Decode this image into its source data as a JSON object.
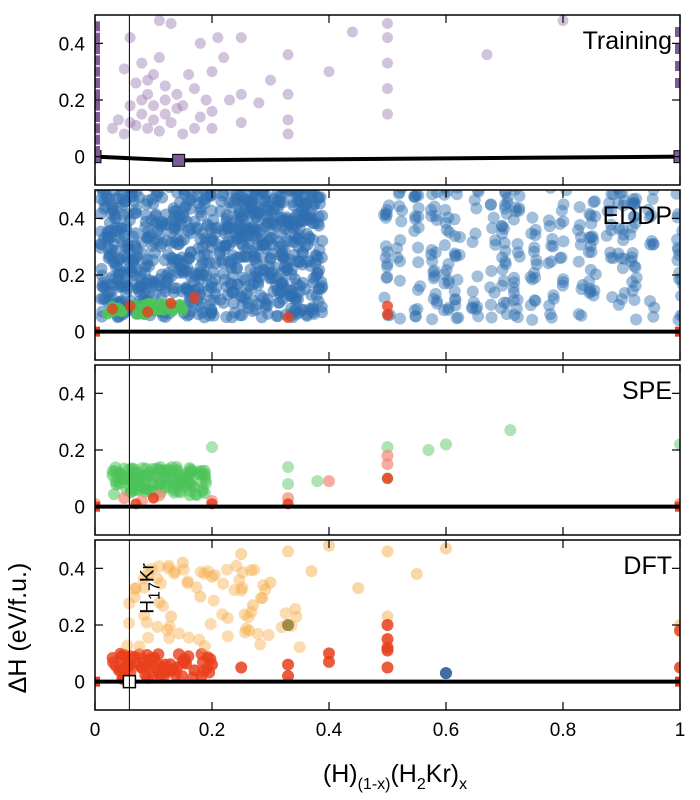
{
  "colors": {
    "training": "#9b7bb3",
    "training_hull": "#7e5a96",
    "eddp": "#2f6fb0",
    "spe_green": "#4cc35a",
    "spe_salmon": "#f08a78",
    "dft_orange": "#f6b04e",
    "dft_red": "#e8401b",
    "dft_blue": "#2f6fb0",
    "dft_olive": "#8a7d3a",
    "hull": "#000000"
  },
  "chart_data": {
    "type": "scatter",
    "xlabel_parts": {
      "base": "(H)",
      "sub1": "(1-x)",
      "mid": "(H",
      "sub2": "2",
      "end": "Kr)",
      "sub3": "x"
    },
    "ylabel": "ΔH (eV/f.u.)",
    "xlim": [
      0,
      1
    ],
    "ylim": [
      -0.1,
      0.5
    ],
    "xticks": [
      0,
      0.2,
      0.4,
      0.6,
      0.8,
      1
    ],
    "xtick_labels": [
      "0",
      "0.2",
      "0.4",
      "0.6",
      "0.8",
      "1"
    ],
    "yticks": [
      0,
      0.2,
      0.4
    ],
    "ytick_labels": [
      "0",
      "0.2",
      "0.4"
    ],
    "vline_x": 0.0588,
    "annotation": {
      "text": "H",
      "sub": "17",
      "end": "Kr",
      "x": 0.0588,
      "y": 0.24
    },
    "panels": [
      {
        "name": "Training",
        "hull": [
          [
            0,
            0
          ],
          [
            0.143,
            -0.013
          ],
          [
            1,
            0
          ]
        ],
        "hull_markers": [
          [
            0,
            0
          ],
          [
            0.143,
            -0.013
          ],
          [
            1,
            0
          ]
        ],
        "points": [
          [
            0.03,
            0.1
          ],
          [
            0.04,
            0.13
          ],
          [
            0.05,
            0.08
          ],
          [
            0.05,
            0.31
          ],
          [
            0.06,
            0.18
          ],
          [
            0.06,
            0.42
          ],
          [
            0.07,
            0.11
          ],
          [
            0.07,
            0.26
          ],
          [
            0.08,
            0.15
          ],
          [
            0.08,
            0.2
          ],
          [
            0.08,
            0.33
          ],
          [
            0.09,
            0.1
          ],
          [
            0.09,
            0.22
          ],
          [
            0.1,
            0.13
          ],
          [
            0.1,
            0.18
          ],
          [
            0.1,
            0.29
          ],
          [
            0.11,
            0.09
          ],
          [
            0.11,
            0.35
          ],
          [
            0.12,
            0.15
          ],
          [
            0.12,
            0.2
          ],
          [
            0.13,
            0.12
          ],
          [
            0.13,
            0.47
          ],
          [
            0.14,
            0.22
          ],
          [
            0.15,
            0.08
          ],
          [
            0.15,
            0.18
          ],
          [
            0.16,
            0.29
          ],
          [
            0.17,
            0.1
          ],
          [
            0.17,
            0.24
          ],
          [
            0.18,
            0.14
          ],
          [
            0.18,
            0.4
          ],
          [
            0.19,
            0.2
          ],
          [
            0.2,
            0.1
          ],
          [
            0.2,
            0.16
          ],
          [
            0.2,
            0.3
          ],
          [
            0.21,
            0.42
          ],
          [
            0.22,
            0.35
          ],
          [
            0.23,
            0.2
          ],
          [
            0.25,
            0.12
          ],
          [
            0.25,
            0.22
          ],
          [
            0.25,
            0.42
          ],
          [
            0.28,
            0.19
          ],
          [
            0.3,
            0.27
          ],
          [
            0.33,
            0.08
          ],
          [
            0.33,
            0.13
          ],
          [
            0.33,
            0.22
          ],
          [
            0.33,
            0.36
          ],
          [
            0.4,
            0.3
          ],
          [
            0.44,
            0.44
          ],
          [
            0.5,
            0.15
          ],
          [
            0.5,
            0.24
          ],
          [
            0.5,
            0.33
          ],
          [
            0.5,
            0.42
          ],
          [
            0.5,
            0.47
          ],
          [
            0.67,
            0.36
          ],
          [
            0.8,
            0.48
          ],
          [
            0.12,
            0.25
          ],
          [
            0.06,
            0.12
          ],
          [
            0.09,
            0.27
          ],
          [
            0.14,
            0.17
          ],
          [
            0.11,
            0.48
          ]
        ]
      },
      {
        "name": "EDDP",
        "hull": [
          [
            0,
            0
          ],
          [
            1,
            0
          ]
        ],
        "points": []
      },
      {
        "name": "SPE",
        "hull": [
          [
            0,
            0
          ],
          [
            1,
            0
          ]
        ],
        "points": [
          [
            0.04,
            0.08
          ],
          [
            0.05,
            0.1
          ],
          [
            0.06,
            0.07
          ],
          [
            0.07,
            0.12
          ],
          [
            0.08,
            0.09
          ],
          [
            0.09,
            0.11
          ],
          [
            0.1,
            0.08
          ],
          [
            0.11,
            0.1
          ],
          [
            0.12,
            0.07
          ],
          [
            0.13,
            0.09
          ],
          [
            0.14,
            0.11
          ],
          [
            0.15,
            0.08
          ],
          [
            0.17,
            0.07
          ],
          [
            0.2,
            0.21
          ],
          [
            0.33,
            0.14
          ],
          [
            0.33,
            0.08
          ],
          [
            0.38,
            0.09
          ],
          [
            0.5,
            0.21
          ],
          [
            0.5,
            0.1
          ],
          [
            0.57,
            0.2
          ],
          [
            0.6,
            0.22
          ],
          [
            0.71,
            0.27
          ],
          [
            1,
            0.22
          ]
        ]
      },
      {
        "name": "DFT",
        "hull": [
          [
            0,
            0
          ],
          [
            0.0588,
            0
          ],
          [
            1,
            0
          ]
        ],
        "hull_markers": [
          [
            0.0588,
            0
          ]
        ],
        "points": [
          [
            0.05,
            0.04
          ],
          [
            0.06,
            0.06
          ],
          [
            0.08,
            0.05
          ],
          [
            0.1,
            0.08
          ],
          [
            0.12,
            0.06
          ],
          [
            0.14,
            0.05
          ],
          [
            0.17,
            0.04
          ],
          [
            0.2,
            0.06
          ],
          [
            0.25,
            0.05
          ],
          [
            0.33,
            0.02
          ],
          [
            0.33,
            0.06
          ],
          [
            0.4,
            0.07
          ],
          [
            0.5,
            0.05
          ],
          [
            0.5,
            0.11
          ],
          [
            0.5,
            0.23
          ],
          [
            0.6,
            0.03
          ],
          [
            0.07,
            0.33
          ],
          [
            0.09,
            0.38
          ],
          [
            0.11,
            0.28
          ],
          [
            0.13,
            0.23
          ],
          [
            0.15,
            0.42
          ],
          [
            0.18,
            0.3
          ],
          [
            0.2,
            0.37
          ],
          [
            0.25,
            0.45
          ],
          [
            0.27,
            0.27
          ],
          [
            0.3,
            0.35
          ],
          [
            0.33,
            0.46
          ],
          [
            0.37,
            0.39
          ],
          [
            0.4,
            0.48
          ],
          [
            0.45,
            0.33
          ],
          [
            0.5,
            0.46
          ],
          [
            0.55,
            0.38
          ],
          [
            0.6,
            0.47
          ],
          [
            0.33,
            0.2
          ],
          [
            1,
            0.2
          ]
        ]
      }
    ]
  }
}
